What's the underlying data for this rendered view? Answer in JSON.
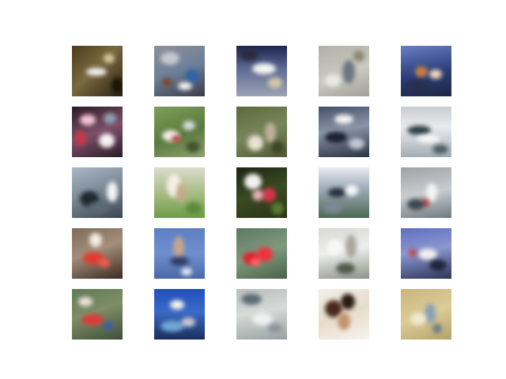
{
  "figure": {
    "kind": "image-grid",
    "rows": 5,
    "cols": 5,
    "tiles": [
      {
        "name": "sample-1-1",
        "bg": "linear-gradient(135deg,#4a3a1a 0%,#7a6a40 45%,#2b2211 100%)",
        "blobs": [
          [
            "#f1f1ef",
            18,
            28,
            26,
            10
          ],
          [
            "#d6c49a",
            40,
            10,
            14,
            12
          ],
          [
            "#1a1408",
            50,
            40,
            14,
            20
          ]
        ]
      },
      {
        "name": "sample-1-2",
        "bg": "linear-gradient(160deg,#8d8f98 0%,#6c7f9a 50%,#3a3c46 100%)",
        "blobs": [
          [
            "#2f63a8",
            40,
            30,
            16,
            18
          ],
          [
            "#c7c9cf",
            8,
            8,
            24,
            16
          ],
          [
            "#7b4a2e",
            10,
            40,
            12,
            12
          ],
          [
            "#f4f2f1",
            30,
            46,
            18,
            10
          ]
        ]
      },
      {
        "name": "sample-1-3",
        "bg": "linear-gradient(180deg,#1d2550 0%,#5e6a92 45%,#9aa3b5 100%)",
        "blobs": [
          [
            "#f4f4f2",
            20,
            22,
            30,
            14
          ],
          [
            "#2a2c39",
            4,
            4,
            24,
            14
          ],
          [
            "#d3c6a8",
            40,
            40,
            18,
            14
          ]
        ]
      },
      {
        "name": "sample-1-4",
        "bg": "linear-gradient(160deg,#b2b0a6 0%,#cbc9c0 55%,#9fa098 100%)",
        "blobs": [
          [
            "#6d7680",
            30,
            18,
            16,
            30
          ],
          [
            "#eae8e2",
            8,
            36,
            20,
            16
          ],
          [
            "#8b8472",
            44,
            6,
            14,
            14
          ]
        ]
      },
      {
        "name": "sample-1-5",
        "bg": "linear-gradient(170deg,#6a7fc0 0%,#2b3d7a 55%,#1f2740 100%)",
        "blobs": [
          [
            "#c98040",
            18,
            26,
            16,
            14
          ],
          [
            "#f2d7b8",
            36,
            30,
            16,
            12
          ],
          [
            "#2b2f4a",
            6,
            44,
            28,
            12
          ]
        ]
      },
      {
        "name": "sample-2-1",
        "bg": "linear-gradient(160deg,#2b1a22 0%,#7d5068 50%,#2a1e2a 100%)",
        "blobs": [
          [
            "#f0c2d6",
            10,
            10,
            20,
            14
          ],
          [
            "#c63848",
            4,
            30,
            14,
            20
          ],
          [
            "#f7f2f4",
            34,
            34,
            20,
            18
          ],
          [
            "#8e9fb0",
            40,
            8,
            16,
            14
          ]
        ]
      },
      {
        "name": "sample-2-2",
        "bg": "linear-gradient(160deg,#7e9e5a 0%,#5a7b3e 55%,#8fa374 100%)",
        "blobs": [
          [
            "#f6efe8",
            10,
            30,
            22,
            14
          ],
          [
            "#b74a44",
            22,
            36,
            12,
            10
          ],
          [
            "#d8d8da",
            36,
            18,
            16,
            12
          ],
          [
            "#43542c",
            40,
            44,
            18,
            14
          ]
        ]
      },
      {
        "name": "sample-2-3",
        "bg": "linear-gradient(160deg,#5d6a3a 0%,#78855a 50%,#4f5a34 100%)",
        "blobs": [
          [
            "#e9e1d2",
            14,
            36,
            20,
            20
          ],
          [
            "#bfb09a",
            36,
            20,
            14,
            26
          ],
          [
            "#3e4426",
            44,
            44,
            16,
            16
          ]
        ]
      },
      {
        "name": "sample-2-4",
        "bg": "linear-gradient(170deg,#44506a 0%,#8a94a8 45%,#2a3242 100%)",
        "blobs": [
          [
            "#f2f2f0",
            20,
            10,
            24,
            12
          ],
          [
            "#1c2232",
            8,
            32,
            28,
            14
          ],
          [
            "#c3c7cf",
            38,
            40,
            20,
            14
          ]
        ]
      },
      {
        "name": "sample-2-5",
        "bg": "linear-gradient(180deg,#c8ccd0 0%,#e8ebee 40%,#a3adb4 100%)",
        "blobs": [
          [
            "#2f4048",
            8,
            24,
            30,
            12
          ],
          [
            "#f6f7f8",
            20,
            36,
            30,
            10
          ],
          [
            "#4b5d66",
            40,
            48,
            20,
            12
          ]
        ]
      },
      {
        "name": "sample-3-1",
        "bg": "linear-gradient(160deg,#a9b8c6 0%,#7e8c99 45%,#3a4550 100%)",
        "blobs": [
          [
            "#1f2a33",
            10,
            30,
            24,
            20
          ],
          [
            "#f4f4f4",
            44,
            18,
            14,
            26
          ],
          [
            "#5b6876",
            20,
            44,
            26,
            14
          ]
        ]
      },
      {
        "name": "sample-3-2",
        "bg": "linear-gradient(180deg,#d9dccb 0%,#a9bd86 50%,#6e9c48 100%)",
        "blobs": [
          [
            "#f4efe4",
            16,
            8,
            18,
            30
          ],
          [
            "#c9a98a",
            28,
            20,
            12,
            24
          ],
          [
            "#5d8a38",
            40,
            44,
            20,
            16
          ]
        ]
      },
      {
        "name": "sample-3-3",
        "bg": "linear-gradient(160deg,#1c2414 0%,#3a4a22 50%,#2a3216 100%)",
        "blobs": [
          [
            "#f4f2f0",
            10,
            8,
            22,
            20
          ],
          [
            "#d8344a",
            32,
            26,
            18,
            18
          ],
          [
            "#e7b0b8",
            20,
            28,
            14,
            14
          ],
          [
            "#5a7a2e",
            44,
            44,
            16,
            16
          ]
        ]
      },
      {
        "name": "sample-3-4",
        "bg": "linear-gradient(180deg,#e8ebf0 0%,#9aa6b5 45%,#4c6a52 100%)",
        "blobs": [
          [
            "#2a3240",
            12,
            26,
            22,
            12
          ],
          [
            "#f6f6f6",
            34,
            22,
            16,
            14
          ],
          [
            "#7e8796",
            6,
            44,
            24,
            14
          ]
        ]
      },
      {
        "name": "sample-3-5",
        "bg": "linear-gradient(170deg,#9da2a8 0%,#c8cccf 50%,#6f7a80 100%)",
        "blobs": [
          [
            "#f4f4f2",
            32,
            20,
            14,
            24
          ],
          [
            "#c33d3d",
            26,
            40,
            10,
            10
          ],
          [
            "#3c4650",
            8,
            40,
            22,
            14
          ]
        ]
      },
      {
        "name": "sample-4-1",
        "bg": "linear-gradient(160deg,#7d6a5a 0%,#a38e7a 45%,#3b2a22 100%)",
        "blobs": [
          [
            "#e23b34",
            14,
            30,
            26,
            16
          ],
          [
            "#f3ece4",
            22,
            6,
            16,
            18
          ],
          [
            "#f05c4a",
            34,
            38,
            14,
            12
          ]
        ]
      },
      {
        "name": "sample-4-2",
        "bg": "linear-gradient(180deg,#5d7fc4 0%,#6f8fcf 50%,#4a69a8 100%)",
        "blobs": [
          [
            "#c2a68a",
            24,
            10,
            14,
            30
          ],
          [
            "#2f3f66",
            20,
            36,
            24,
            12
          ],
          [
            "#e6e6ee",
            34,
            50,
            14,
            10
          ]
        ]
      },
      {
        "name": "sample-4-3",
        "bg": "linear-gradient(160deg,#5d7860 0%,#7e9a7e 50%,#4a6048 100%)",
        "blobs": [
          [
            "#e4202e",
            8,
            30,
            22,
            16
          ],
          [
            "#f0303c",
            26,
            24,
            20,
            18
          ],
          [
            "#ff6a6a",
            18,
            38,
            12,
            10
          ]
        ]
      },
      {
        "name": "sample-4-4",
        "bg": "linear-gradient(170deg,#d7d9d6 0%,#eeefec 45%,#8c9388 100%)",
        "blobs": [
          [
            "#a9a69c",
            34,
            8,
            14,
            30
          ],
          [
            "#f8f7f4",
            10,
            14,
            20,
            20
          ],
          [
            "#4e5a4a",
            22,
            44,
            24,
            14
          ]
        ]
      },
      {
        "name": "sample-4-5",
        "bg": "linear-gradient(170deg,#5f70c0 0%,#8a97d0 45%,#2e3658 100%)",
        "blobs": [
          [
            "#f2f0ee",
            22,
            26,
            24,
            14
          ],
          [
            "#c04848",
            10,
            26,
            10,
            10
          ],
          [
            "#20253a",
            36,
            40,
            22,
            14
          ]
        ]
      },
      {
        "name": "sample-5-1",
        "bg": "linear-gradient(160deg,#5f7a56 0%,#7e8e66 45%,#3e4e3a 100%)",
        "blobs": [
          [
            "#e03a3a",
            12,
            32,
            28,
            14
          ],
          [
            "#eae2d6",
            8,
            10,
            18,
            12
          ],
          [
            "#3a5ab0",
            40,
            42,
            12,
            10
          ]
        ]
      },
      {
        "name": "sample-5-2",
        "bg": "linear-gradient(180deg,#2150b8 0%,#3a6ac8 45%,#1a2e5a 100%)",
        "blobs": [
          [
            "#f6f2ea",
            20,
            14,
            18,
            12
          ],
          [
            "#6fa8d8",
            8,
            40,
            30,
            14
          ],
          [
            "#c8c8d0",
            34,
            36,
            18,
            12
          ]
        ]
      },
      {
        "name": "sample-5-3",
        "bg": "linear-gradient(170deg,#b9bfbe 0%,#d6dad8 45%,#9aa3a2 100%)",
        "blobs": [
          [
            "#5d6b74",
            6,
            6,
            26,
            14
          ],
          [
            "#eef0ef",
            20,
            30,
            26,
            16
          ],
          [
            "#8b949a",
            40,
            44,
            18,
            12
          ]
        ]
      },
      {
        "name": "sample-5-4",
        "bg": "linear-gradient(160deg,#f2f0ea 0%,#e6dccb 50%,#f6f4ee 100%)",
        "blobs": [
          [
            "#4a2a1c",
            8,
            14,
            22,
            22
          ],
          [
            "#2a1a12",
            28,
            6,
            18,
            20
          ],
          [
            "#c1946c",
            24,
            30,
            16,
            22
          ]
        ]
      },
      {
        "name": "sample-5-5",
        "bg": "linear-gradient(160deg,#c9b47a 0%,#ddcb98 50%,#b6a26a 100%)",
        "blobs": [
          [
            "#8aa0b6",
            30,
            18,
            14,
            26
          ],
          [
            "#f0e8d2",
            12,
            30,
            20,
            16
          ],
          [
            "#6a7c8a",
            40,
            44,
            12,
            12
          ]
        ]
      }
    ]
  }
}
